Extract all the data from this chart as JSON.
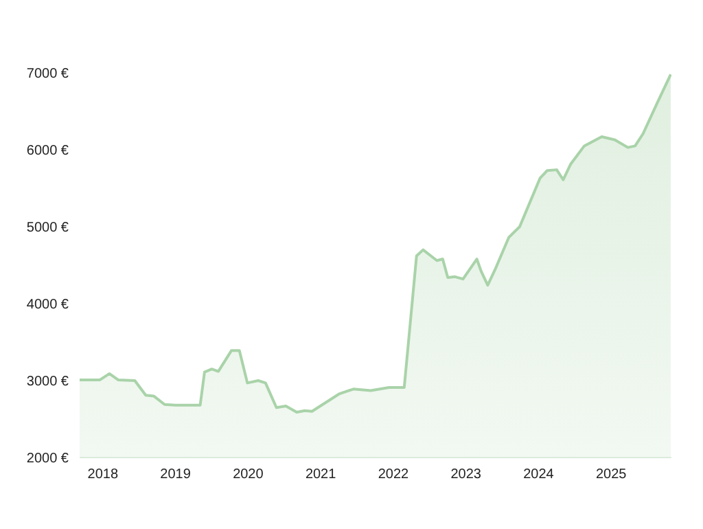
{
  "chart_data": {
    "type": "area",
    "color": "#a9d3a9",
    "x": [
      2017.68,
      2017.96,
      2018.09,
      2018.21,
      2018.44,
      2018.59,
      2018.7,
      2018.85,
      2019.0,
      2019.34,
      2019.4,
      2019.5,
      2019.59,
      2019.77,
      2019.88,
      2019.99,
      2020.14,
      2020.24,
      2020.39,
      2020.52,
      2020.67,
      2020.78,
      2020.88,
      2021.26,
      2021.45,
      2021.69,
      2021.94,
      2022.15,
      2022.32,
      2022.41,
      2022.6,
      2022.68,
      2022.75,
      2022.85,
      2022.96,
      2023.15,
      2023.21,
      2023.3,
      2023.4,
      2023.59,
      2023.74,
      2024.02,
      2024.12,
      2024.25,
      2024.34,
      2024.44,
      2024.63,
      2024.87,
      2025.05,
      2025.23,
      2025.33,
      2025.44,
      2025.63,
      2025.82
    ],
    "values": [
      3010,
      3010,
      3090,
      3010,
      3000,
      2810,
      2800,
      2690,
      2680,
      2680,
      3110,
      3150,
      3120,
      3390,
      3390,
      2970,
      3000,
      2970,
      2650,
      2670,
      2590,
      2610,
      2600,
      2830,
      2890,
      2870,
      2910,
      2910,
      4620,
      4700,
      4560,
      4580,
      4340,
      4350,
      4320,
      4580,
      4420,
      4240,
      4440,
      4860,
      5000,
      5630,
      5730,
      5740,
      5610,
      5810,
      6050,
      6170,
      6130,
      6030,
      6050,
      6210,
      6600,
      6980
    ],
    "xlim": [
      2017.68,
      2025.83
    ],
    "xticks": [
      2018,
      2019,
      2020,
      2021,
      2022,
      2023,
      2024,
      2025
    ],
    "ylim": [
      2000,
      7000
    ],
    "yticks": [
      {
        "value": 2000,
        "label": "2000 €"
      },
      {
        "value": 3000,
        "label": "3000 €"
      },
      {
        "value": 4000,
        "label": "4000 €"
      },
      {
        "value": 5000,
        "label": "5000 €"
      },
      {
        "value": 6000,
        "label": "6000 €"
      },
      {
        "value": 7000,
        "label": "7000 €"
      }
    ],
    "grid": false
  }
}
